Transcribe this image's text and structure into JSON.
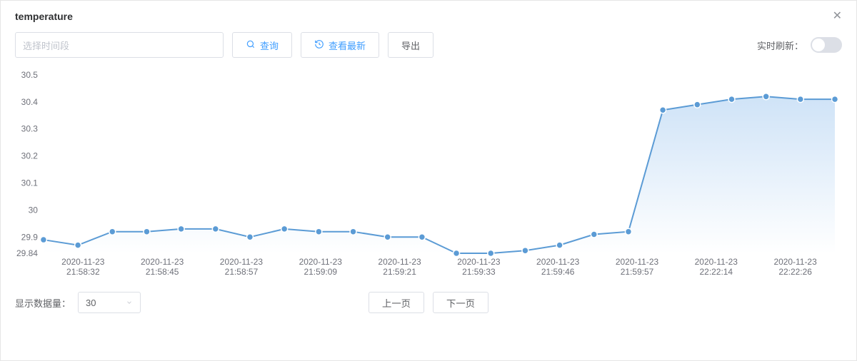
{
  "modal": {
    "title": "temperature"
  },
  "toolbar": {
    "date_placeholder": "选择时间段",
    "query_label": "查询",
    "latest_label": "查看最新",
    "export_label": "导出",
    "refresh_label": "实时刷新：",
    "refresh_on": false
  },
  "footer": {
    "count_label": "显示数据量：",
    "count_value": "30",
    "prev_label": "上一页",
    "next_label": "下一页"
  },
  "chart": {
    "type": "line-area",
    "series_color": "#5b9bd5",
    "point_fill": "#5b9bd5",
    "point_stroke": "#ffffff",
    "area_gradient_top": "#cfe3f7",
    "area_gradient_bottom": "#ffffff",
    "axis_text_color": "#6e7079",
    "axis_font_size": 12,
    "background_color": "#ffffff",
    "line_width": 2,
    "point_radius": 4.5,
    "ymin": 29.84,
    "ymax": 30.5,
    "yticks": [
      29.84,
      29.9,
      30,
      30.1,
      30.2,
      30.3,
      30.4,
      30.5
    ],
    "x_labels": [
      {
        "l1": "2020-11-23",
        "l2": "21:58:32"
      },
      {
        "l1": "2020-11-23",
        "l2": "21:58:45"
      },
      {
        "l1": "2020-11-23",
        "l2": "21:58:57"
      },
      {
        "l1": "2020-11-23",
        "l2": "21:59:09"
      },
      {
        "l1": "2020-11-23",
        "l2": "21:59:21"
      },
      {
        "l1": "2020-11-23",
        "l2": "21:59:33"
      },
      {
        "l1": "2020-11-23",
        "l2": "21:59:46"
      },
      {
        "l1": "2020-11-23",
        "l2": "21:59:57"
      },
      {
        "l1": "2020-11-23",
        "l2": "22:22:14"
      },
      {
        "l1": "2020-11-23",
        "l2": "22:22:26"
      }
    ],
    "values": [
      29.89,
      29.87,
      29.92,
      29.92,
      29.93,
      29.93,
      29.9,
      29.93,
      29.92,
      29.92,
      29.9,
      29.9,
      29.84,
      29.84,
      29.85,
      29.87,
      29.91,
      29.92,
      30.37,
      30.39,
      30.41,
      30.42,
      30.41,
      30.41
    ]
  }
}
